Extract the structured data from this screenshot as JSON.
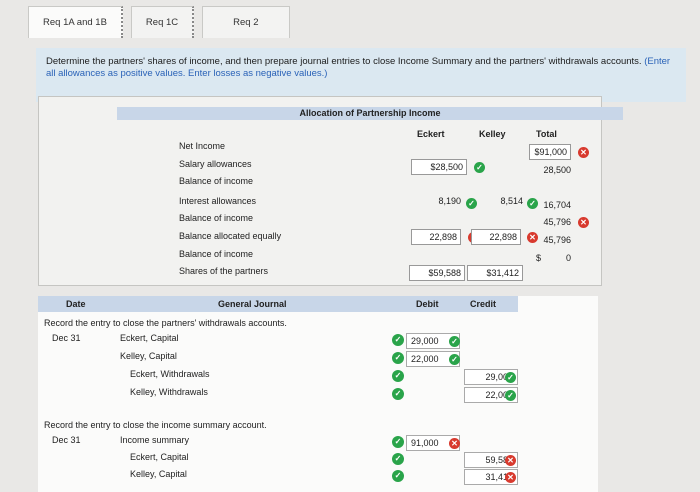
{
  "tabs": [
    "Req 1A and 1B",
    "Req 1C",
    "Req 2"
  ],
  "instructions": {
    "text": "Determine the partners' shares of income, and then prepare journal entries to close Income Summary and the partners' withdrawals accounts.",
    "hint": "(Enter all allowances as positive values. Enter losses as negative values.)"
  },
  "allocation": {
    "title": "Allocation of Partnership Income",
    "columns": [
      "Eckert",
      "Kelley",
      "Total"
    ],
    "rows": [
      {
        "label": "Net Income",
        "eckert": "",
        "kelley": "",
        "total": "$91,000",
        "total_status": "bad"
      },
      {
        "label": "Salary allowances",
        "eckert": "$28,500",
        "eckert_status": "ok",
        "kelley": "",
        "total": "28,500"
      },
      {
        "label": "Balance of income",
        "eckert": "",
        "kelley": "",
        "total": ""
      },
      {
        "label": "Interest allowances",
        "eckert": "8,190",
        "eckert_status": "ok",
        "kelley": "8,514",
        "kelley_status": "ok",
        "total": "16,704"
      },
      {
        "label": "Balance of income",
        "eckert": "",
        "kelley": "",
        "total": "45,796",
        "total_status": "bad"
      },
      {
        "label": "Balance allocated equally",
        "eckert": "22,898",
        "eckert_status": "bad",
        "kelley": "22,898",
        "kelley_status": "bad",
        "total": "45,796"
      },
      {
        "label": "Balance of income",
        "eckert": "",
        "kelley": "",
        "total": "$          0"
      },
      {
        "label": "Shares of the partners",
        "eckert": "$59,588",
        "kelley": "$31,412",
        "total": ""
      }
    ]
  },
  "journal": {
    "headers": {
      "date": "Date",
      "general": "General Journal",
      "debit": "Debit",
      "credit": "Credit"
    },
    "entry1": {
      "description": "Record the entry to close the partners' withdrawals accounts.",
      "date": "Dec 31",
      "lines": [
        {
          "account": "Eckert, Capital",
          "debit": "29,000",
          "credit": "",
          "debit_status": "ok"
        },
        {
          "account": "Kelley, Capital",
          "debit": "22,000",
          "credit": "",
          "debit_status": "ok"
        },
        {
          "account": "Eckert, Withdrawals",
          "debit": "",
          "credit": "29,000",
          "credit_status": "ok"
        },
        {
          "account": "Kelley, Withdrawals",
          "debit": "",
          "credit": "22,000",
          "credit_status": "ok"
        }
      ]
    },
    "entry2": {
      "description": "Record the entry to close the income summary account.",
      "date": "Dec 31",
      "lines": [
        {
          "account": "Income summary",
          "debit": "91,000",
          "credit": "",
          "debit_status": "bad"
        },
        {
          "account": "Eckert, Capital",
          "debit": "",
          "credit": "59,588",
          "credit_status": "bad"
        },
        {
          "account": "Kelley, Capital",
          "debit": "",
          "credit": "31,412",
          "credit_status": "bad"
        }
      ]
    }
  },
  "colors": {
    "ok": "#2aa44a",
    "bad": "#d83a2e",
    "header": "#c8d6e8"
  }
}
